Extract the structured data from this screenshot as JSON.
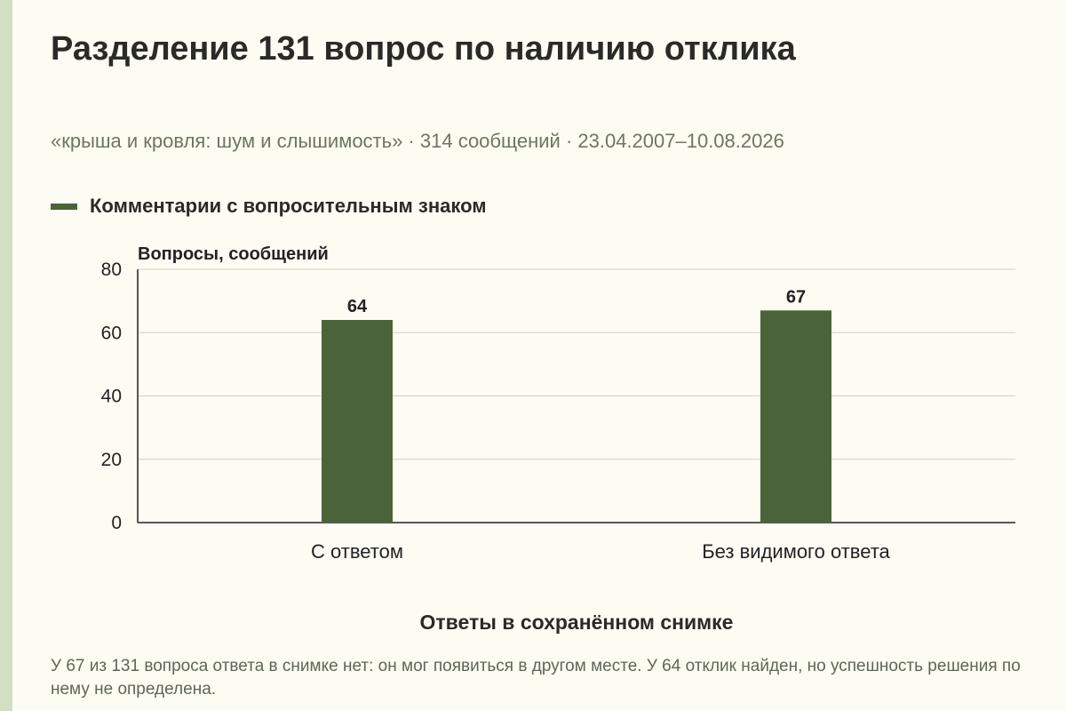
{
  "header": {
    "title": "Разделение 131 вопрос по наличию отклика",
    "subtitle": "«крыша и кровля: шум и слышимость» · 314 сообщений · 23.04.2007–10.08.2026"
  },
  "colors": {
    "bar": "#4a6338",
    "background": "#fdfcf3",
    "side_stripe": "#d3dfc0",
    "grid": "#cfcfc6",
    "axis": "#222222"
  },
  "chart_data": {
    "type": "bar",
    "categories": [
      "С ответом",
      "Без видимого ответа"
    ],
    "series": [
      {
        "name": "Комментарии с вопросительным знаком",
        "values": [
          64,
          67
        ]
      }
    ],
    "ylabel": "Вопросы, сообщений",
    "xlabel": "Ответы в сохранённом снимке",
    "ylim": [
      0,
      80
    ],
    "yticks": [
      0,
      20,
      40,
      60,
      80
    ],
    "grid": true,
    "legend_position": "top-left",
    "data_labels": true
  },
  "footnote": "У 67 из 131 вопроса ответа в снимке нет: он мог появиться в другом месте. У 64 отклик найден, но успешность решения по нему не определена."
}
